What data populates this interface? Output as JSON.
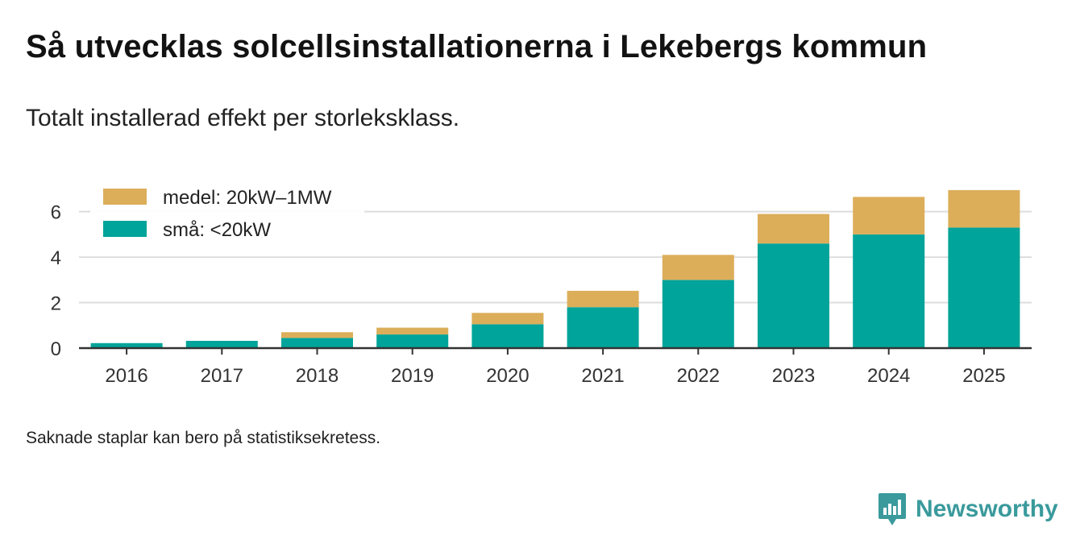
{
  "title": "Så utvecklas solcellsinstallationerna i Lekebergs kommun",
  "subtitle": "Totalt installerad effekt per storleksklass.",
  "footnote": "Saknade staplar kan bero på statistiksekretess.",
  "brand": {
    "name": "Newsworthy",
    "icon": "newsworthy-logo-icon",
    "color": "#3a9a9c"
  },
  "chart_data": {
    "type": "bar",
    "stacked": true,
    "categories": [
      "2016",
      "2017",
      "2018",
      "2019",
      "2020",
      "2021",
      "2022",
      "2023",
      "2024",
      "2025"
    ],
    "series": [
      {
        "name": "små: <20kW",
        "color": "#00a49a",
        "values": [
          0.22,
          0.32,
          0.45,
          0.6,
          1.05,
          1.8,
          3.0,
          4.6,
          5.0,
          5.3
        ]
      },
      {
        "name": "medel: 20kW–1MW",
        "color": "#dcae5a",
        "values": [
          0.0,
          0.0,
          0.25,
          0.3,
          0.5,
          0.72,
          1.1,
          1.3,
          1.65,
          1.65
        ]
      }
    ],
    "legend_order": [
      "medel: 20kW–1MW",
      "små: <20kW"
    ],
    "legend_position": "top-left",
    "yticks": [
      0,
      2,
      4,
      6
    ],
    "ylim": [
      0,
      7.3
    ],
    "grid": true,
    "xlabel": "",
    "ylabel": "",
    "colors": {
      "axis": "#333333",
      "grid": "#dddddd",
      "tick_text": "#333333"
    }
  }
}
